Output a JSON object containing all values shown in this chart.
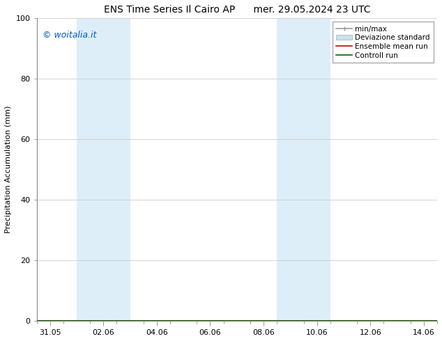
{
  "title_left": "ENS Time Series Il Cairo AP",
  "title_right": "mer. 29.05.2024 23 UTC",
  "ylabel": "Precipitation Accumulation (mm)",
  "watermark": "© woitalia.it",
  "watermark_color": "#0055cc",
  "ylim": [
    0,
    100
  ],
  "yticks": [
    0,
    20,
    40,
    60,
    80,
    100
  ],
  "x_tick_labels": [
    "31.05",
    "02.06",
    "04.06",
    "06.06",
    "08.06",
    "10.06",
    "12.06",
    "14.06"
  ],
  "x_tick_positions": [
    0,
    2,
    4,
    6,
    8,
    10,
    12,
    14
  ],
  "xlim": [
    -0.5,
    14.5
  ],
  "shaded_bands": [
    {
      "x_start": 1.0,
      "x_end": 3.0
    },
    {
      "x_start": 8.5,
      "x_end": 10.5
    }
  ],
  "shade_color": "#ddeef8",
  "legend_entries": [
    {
      "label": "min/max",
      "color": "#999999",
      "lw": 1.2,
      "type": "line_caps"
    },
    {
      "label": "Deviazione standard",
      "color": "#cce0f0",
      "lw": 6,
      "type": "band"
    },
    {
      "label": "Ensemble mean run",
      "color": "#cc0000",
      "lw": 1.2,
      "type": "line"
    },
    {
      "label": "Controll run",
      "color": "#006600",
      "lw": 1.2,
      "type": "line"
    }
  ],
  "background_color": "#ffffff",
  "grid_color": "#cccccc",
  "spine_color": "#888888",
  "title_fontsize": 10,
  "tick_fontsize": 8,
  "ylabel_fontsize": 8,
  "watermark_fontsize": 9,
  "legend_fontsize": 7.5
}
